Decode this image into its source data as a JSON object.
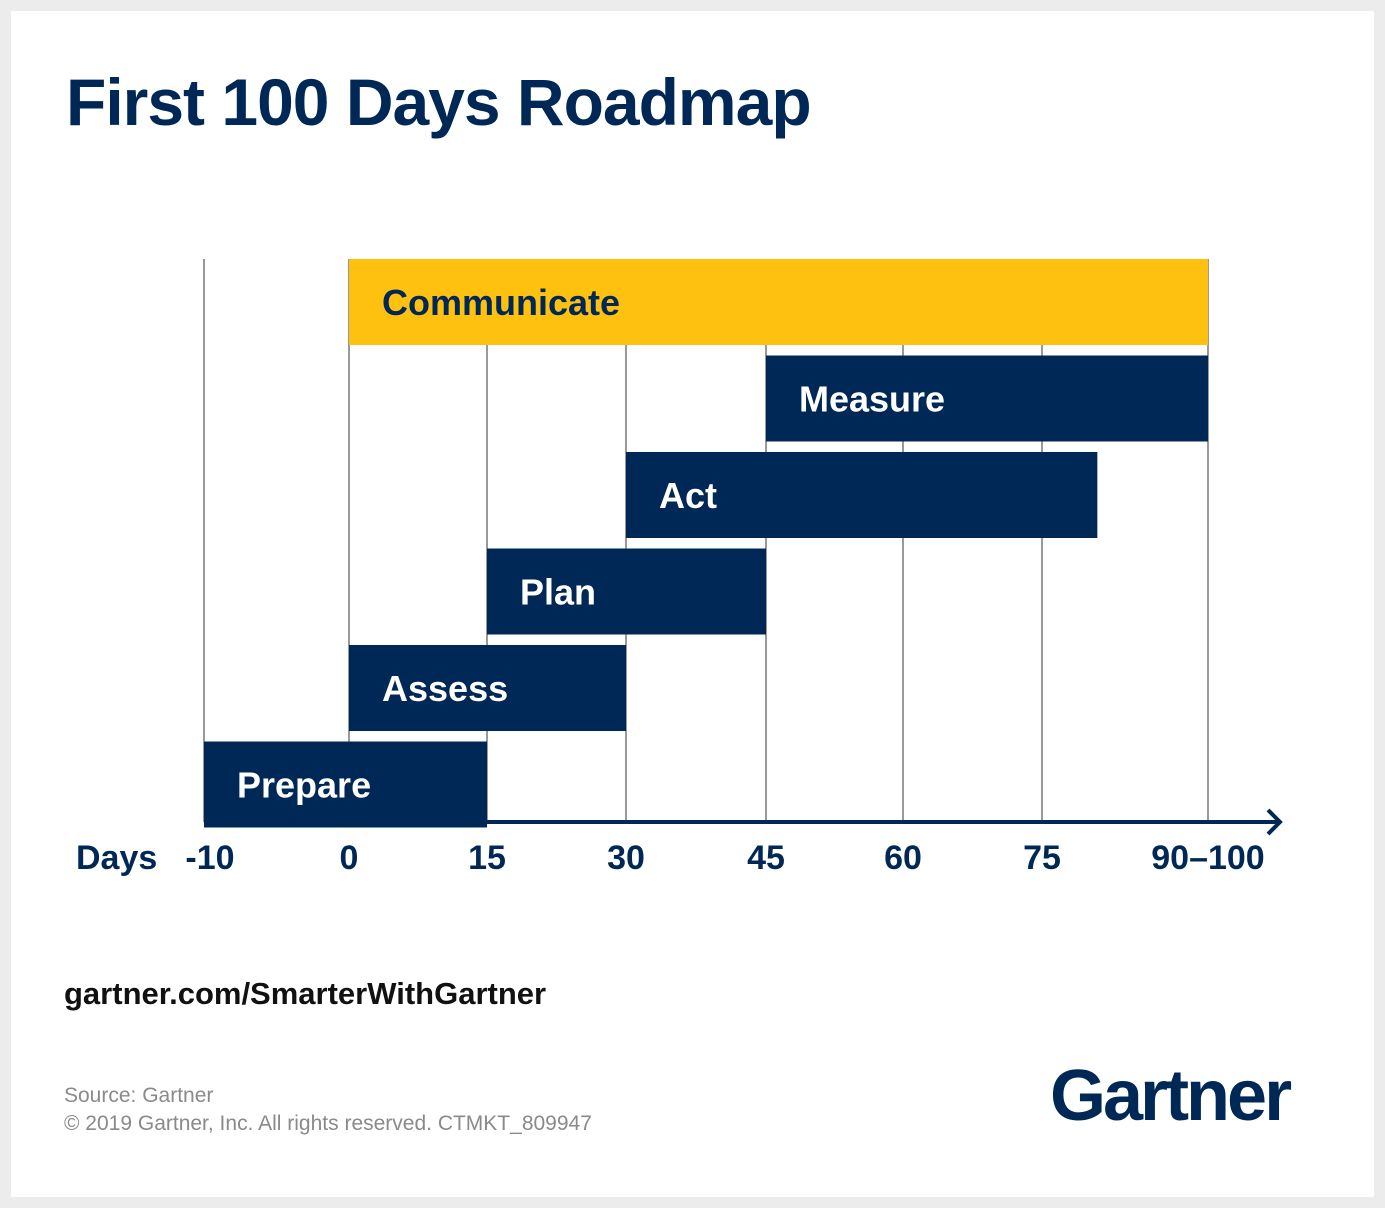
{
  "title": "First 100 Days Roadmap",
  "url": "gartner.com/SmarterWithGartner",
  "source": "Source: Gartner",
  "copyright": "© 2019 Gartner, Inc. All rights reserved. CTMKT_809947",
  "logo": "Gartner",
  "chart_data": {
    "type": "bar",
    "orientation": "horizontal-gantt",
    "xlabel": "Days",
    "x_ticks": [
      -10,
      0,
      15,
      30,
      45,
      60,
      75,
      90
    ],
    "x_tick_labels": [
      "-10",
      "0",
      "15",
      "30",
      "45",
      "60",
      "75",
      "90–100"
    ],
    "grid": true,
    "bars": [
      {
        "label": "Communicate",
        "start": 0,
        "end": 90,
        "color": "#fec110",
        "text_color": "#002856"
      },
      {
        "label": "Measure",
        "start": 45,
        "end": 90,
        "color": "#002856",
        "text_color": "#ffffff"
      },
      {
        "label": "Act",
        "start": 30,
        "end": 80,
        "color": "#002856",
        "text_color": "#ffffff"
      },
      {
        "label": "Plan",
        "start": 15,
        "end": 45,
        "color": "#002856",
        "text_color": "#ffffff"
      },
      {
        "label": "Assess",
        "start": 0,
        "end": 30,
        "color": "#002856",
        "text_color": "#ffffff"
      },
      {
        "label": "Prepare",
        "start": -10,
        "end": 15,
        "color": "#002856",
        "text_color": "#ffffff"
      }
    ]
  }
}
